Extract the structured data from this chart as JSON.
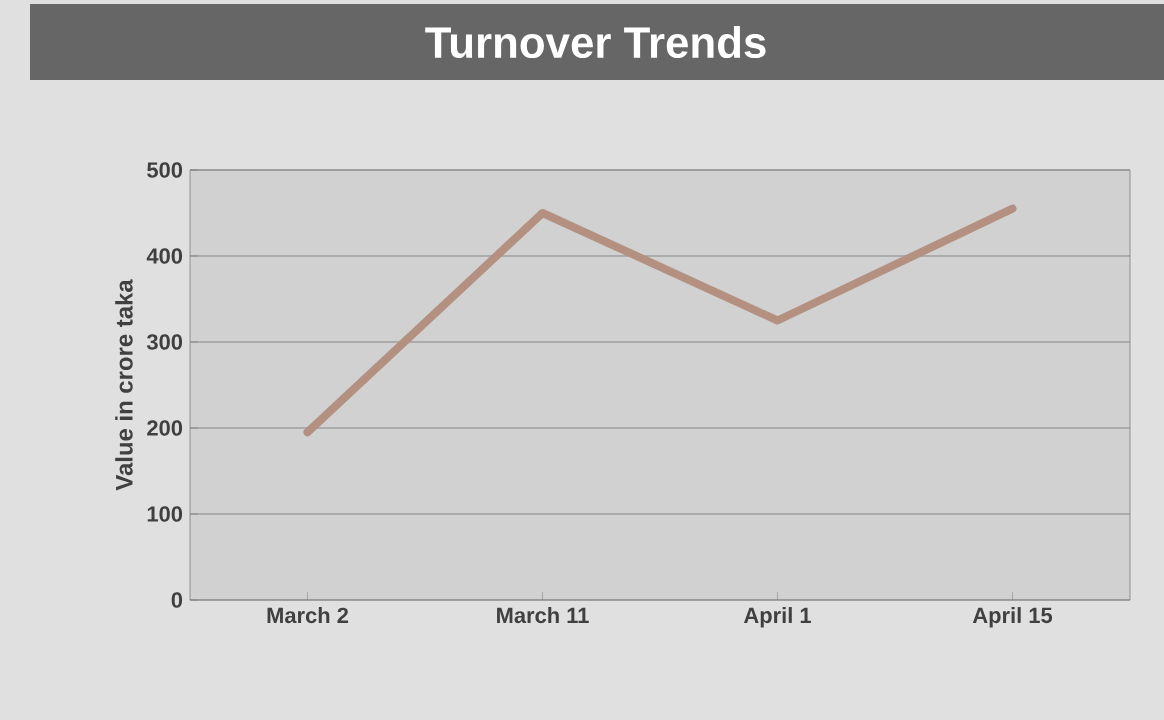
{
  "chart_data": {
    "type": "line",
    "title": "Turnover Trends",
    "ylabel": "Value in crore taka",
    "categories": [
      "March 2",
      "March 11",
      "April 1",
      "April 15"
    ],
    "series": [
      {
        "color": "#b3907f",
        "values": [
          195,
          450,
          325,
          455
        ]
      }
    ],
    "ylim": [
      0,
      500
    ],
    "yticks": [
      0,
      100,
      200,
      300,
      400,
      500
    ],
    "grid": "y",
    "marker": "none",
    "line_style": "solid"
  }
}
